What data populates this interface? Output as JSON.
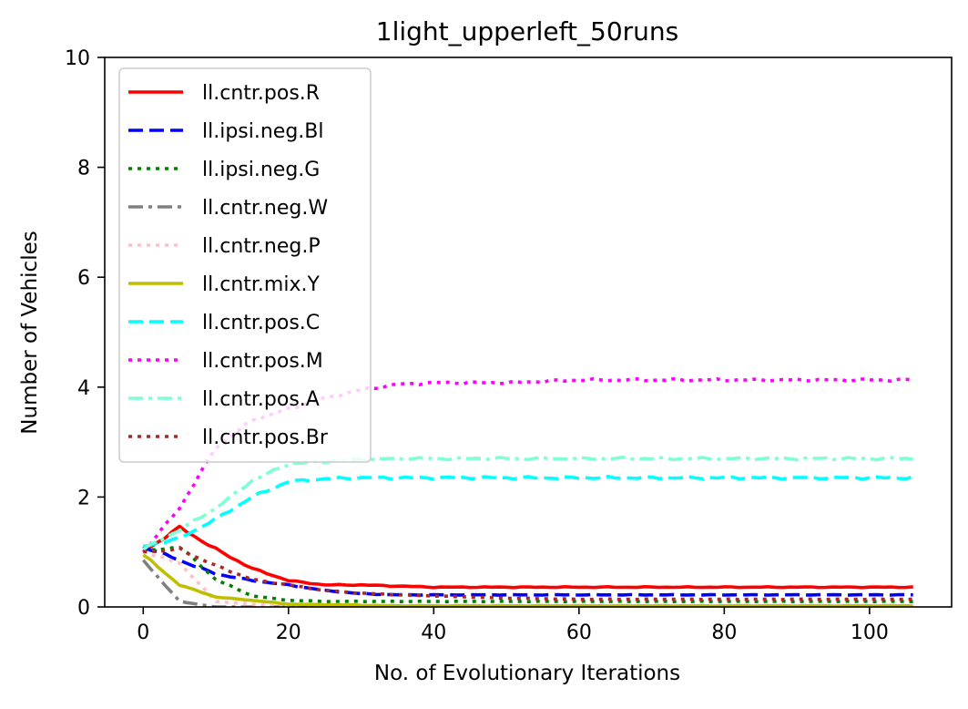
{
  "chart_data": {
    "type": "line",
    "title": "1light_upperleft_50runs",
    "xlabel": "No. of Evolutionary Iterations",
    "ylabel": "Number of Vehicles",
    "xlim": [
      -5.3,
      111.3
    ],
    "ylim": [
      0,
      10
    ],
    "xticks": [
      0,
      20,
      40,
      60,
      80,
      100
    ],
    "yticks": [
      0,
      2,
      4,
      6,
      8,
      10
    ],
    "grid": false,
    "legend_position": "upper-left",
    "x_keys": [
      0,
      5,
      10,
      15,
      20,
      25,
      30,
      35,
      40,
      50,
      60,
      70,
      80,
      90,
      100,
      106
    ],
    "series": [
      {
        "name": "ll.cntr.pos.R",
        "color": "#ff0000",
        "style": "solid",
        "values": [
          1.0,
          1.45,
          1.05,
          0.7,
          0.48,
          0.4,
          0.4,
          0.38,
          0.36,
          0.36,
          0.36,
          0.36,
          0.36,
          0.36,
          0.36,
          0.36
        ]
      },
      {
        "name": "ll.ipsi.neg.Bl",
        "color": "#0000ff",
        "style": "dashed",
        "values": [
          1.1,
          0.85,
          0.6,
          0.48,
          0.4,
          0.3,
          0.24,
          0.22,
          0.22,
          0.22,
          0.22,
          0.22,
          0.22,
          0.22,
          0.22,
          0.22
        ]
      },
      {
        "name": "ll.ipsi.neg.G",
        "color": "#008000",
        "style": "dotted",
        "values": [
          1.0,
          1.1,
          0.5,
          0.2,
          0.12,
          0.1,
          0.1,
          0.1,
          0.1,
          0.1,
          0.1,
          0.1,
          0.1,
          0.1,
          0.1,
          0.1
        ]
      },
      {
        "name": "ll.cntr.neg.W",
        "color": "#808080",
        "style": "dashdot",
        "values": [
          0.85,
          0.1,
          0.0,
          0.0,
          0.0,
          0.0,
          0.0,
          0.0,
          0.0,
          0.0,
          0.0,
          0.0,
          0.0,
          0.0,
          0.0,
          0.0
        ]
      },
      {
        "name": "ll.cntr.neg.P",
        "color": "#ffc0cb",
        "style": "dotted",
        "values": [
          1.0,
          0.8,
          0.1,
          0.05,
          0.0,
          0.0,
          0.0,
          0.0,
          0.0,
          0.0,
          0.0,
          0.0,
          0.0,
          0.0,
          0.0,
          0.0
        ]
      },
      {
        "name": "ll.cntr.mix.Y",
        "color": "#bfbf00",
        "style": "solid",
        "values": [
          0.95,
          0.4,
          0.18,
          0.12,
          0.05,
          0.04,
          0.03,
          0.02,
          0.02,
          0.02,
          0.02,
          0.02,
          0.02,
          0.02,
          0.02,
          0.02
        ]
      },
      {
        "name": "ll.cntr.pos.C",
        "color": "#00ffff",
        "style": "dashed",
        "values": [
          1.1,
          1.25,
          1.6,
          2.0,
          2.28,
          2.33,
          2.35,
          2.35,
          2.35,
          2.35,
          2.35,
          2.35,
          2.35,
          2.35,
          2.35,
          2.35
        ]
      },
      {
        "name": "ll.cntr.pos.M",
        "color": "#ff00ff",
        "style": "dotted",
        "values": [
          1.0,
          1.8,
          2.9,
          3.4,
          3.6,
          3.8,
          3.95,
          4.05,
          4.08,
          4.08,
          4.13,
          4.13,
          4.13,
          4.13,
          4.13,
          4.13
        ]
      },
      {
        "name": "ll.cntr.pos.A",
        "color": "#7fffd4",
        "style": "dashdot",
        "values": [
          1.05,
          1.4,
          1.8,
          2.3,
          2.6,
          2.65,
          2.68,
          2.7,
          2.7,
          2.7,
          2.7,
          2.7,
          2.7,
          2.7,
          2.7,
          2.7
        ]
      },
      {
        "name": "ll.cntr.pos.Br",
        "color": "#a52a2a",
        "style": "dotted",
        "values": [
          1.0,
          1.05,
          0.75,
          0.5,
          0.4,
          0.3,
          0.25,
          0.22,
          0.2,
          0.16,
          0.14,
          0.14,
          0.14,
          0.14,
          0.14,
          0.14
        ]
      }
    ]
  }
}
